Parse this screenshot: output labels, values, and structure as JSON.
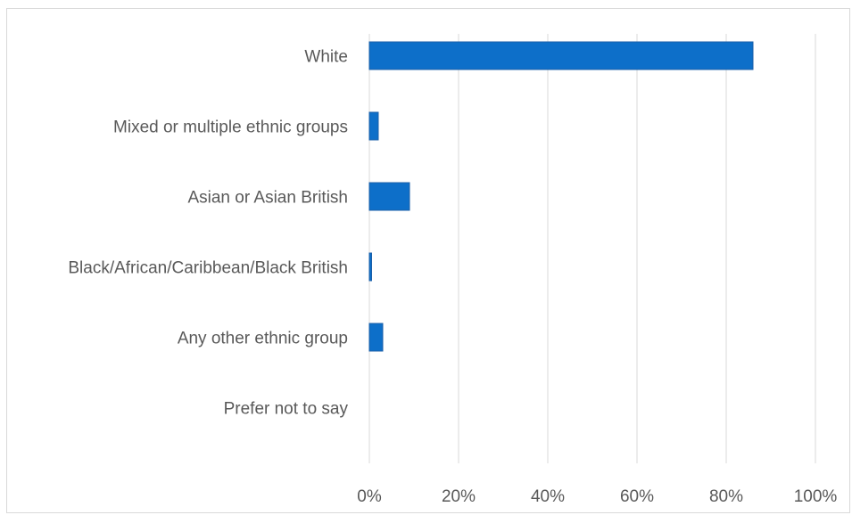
{
  "chart_data": {
    "type": "bar",
    "orientation": "horizontal",
    "categories": [
      "White",
      "Mixed or multiple ethnic groups",
      "Asian or Asian British",
      "Black/African/Caribbean/Black British",
      "Any other ethnic group",
      "Prefer not to say"
    ],
    "values": [
      86,
      2,
      9,
      0.5,
      3,
      0
    ],
    "x_ticks": [
      "0%",
      "20%",
      "40%",
      "60%",
      "80%",
      "100%"
    ],
    "xlim": [
      0,
      100
    ],
    "grid": true,
    "legend": "none",
    "colors": {
      "bar": "#0d6fc9",
      "grid": "#d9d9d9",
      "text": "#595959"
    }
  }
}
